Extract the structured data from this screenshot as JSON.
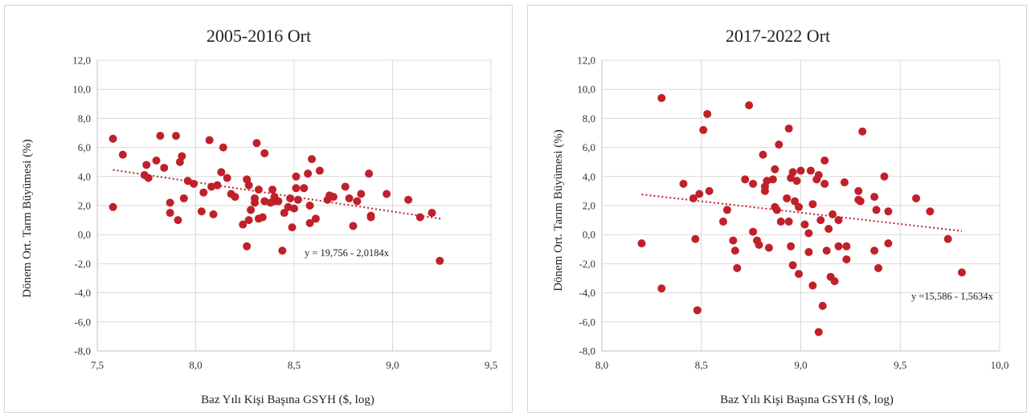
{
  "colors": {
    "points": "#c0202a",
    "trend": "#c0202a",
    "grid": "#d9d9d9"
  },
  "chart_data": [
    {
      "type": "scatter",
      "title": "2005-2016 Ort",
      "xlabel": "Baz Yılı Kişi Başına GSYH ($, log)",
      "ylabel": "Dönem Ort. Tarm Büyümesi (%)",
      "xlim": [
        7.5,
        9.5
      ],
      "ylim": [
        -8,
        12
      ],
      "xticks": [
        "7,5",
        "8,0",
        "8,5",
        "9,0",
        "9,5"
      ],
      "yticks": [
        "12,0",
        "10,0",
        "8,0",
        "6,0",
        "4,0",
        "2,0",
        "0,0",
        "-2,0",
        "-4,0",
        "-6,0",
        "-8,0"
      ],
      "grid": true,
      "trendline": {
        "intercept": 19.756,
        "slope": -2.0184,
        "x_range": [
          7.58,
          9.25
        ]
      },
      "equation": "y = 19,756 - 2,0184x",
      "points": [
        [
          7.58,
          6.6
        ],
        [
          7.58,
          1.9
        ],
        [
          7.63,
          5.5
        ],
        [
          7.74,
          4.1
        ],
        [
          7.75,
          4.8
        ],
        [
          7.76,
          3.9
        ],
        [
          7.8,
          5.1
        ],
        [
          7.82,
          6.8
        ],
        [
          7.84,
          4.6
        ],
        [
          7.87,
          2.2
        ],
        [
          7.87,
          1.5
        ],
        [
          7.9,
          6.8
        ],
        [
          7.91,
          1.0
        ],
        [
          7.92,
          5.0
        ],
        [
          7.93,
          5.4
        ],
        [
          7.94,
          2.5
        ],
        [
          7.96,
          3.7
        ],
        [
          7.99,
          3.5
        ],
        [
          8.03,
          1.6
        ],
        [
          8.04,
          2.9
        ],
        [
          8.07,
          6.5
        ],
        [
          8.08,
          3.3
        ],
        [
          8.09,
          1.4
        ],
        [
          8.11,
          3.4
        ],
        [
          8.13,
          4.3
        ],
        [
          8.14,
          6.0
        ],
        [
          8.16,
          3.9
        ],
        [
          8.18,
          2.8
        ],
        [
          8.2,
          2.6
        ],
        [
          8.24,
          0.7
        ],
        [
          8.26,
          -0.8
        ],
        [
          8.26,
          3.8
        ],
        [
          8.27,
          3.4
        ],
        [
          8.27,
          1.0
        ],
        [
          8.28,
          1.7
        ],
        [
          8.3,
          2.5
        ],
        [
          8.3,
          2.2
        ],
        [
          8.31,
          6.3
        ],
        [
          8.32,
          3.1
        ],
        [
          8.32,
          1.1
        ],
        [
          8.34,
          1.2
        ],
        [
          8.35,
          5.6
        ],
        [
          8.35,
          2.3
        ],
        [
          8.38,
          2.2
        ],
        [
          8.39,
          3.1
        ],
        [
          8.4,
          2.3
        ],
        [
          8.4,
          2.6
        ],
        [
          8.42,
          2.3
        ],
        [
          8.44,
          -1.1
        ],
        [
          8.45,
          1.5
        ],
        [
          8.47,
          1.9
        ],
        [
          8.48,
          2.5
        ],
        [
          8.49,
          0.5
        ],
        [
          8.5,
          1.8
        ],
        [
          8.51,
          4.0
        ],
        [
          8.51,
          3.2
        ],
        [
          8.52,
          2.4
        ],
        [
          8.55,
          3.2
        ],
        [
          8.57,
          4.2
        ],
        [
          8.58,
          0.8
        ],
        [
          8.58,
          2.0
        ],
        [
          8.59,
          5.2
        ],
        [
          8.61,
          1.1
        ],
        [
          8.63,
          4.4
        ],
        [
          8.67,
          2.4
        ],
        [
          8.68,
          2.7
        ],
        [
          8.7,
          2.6
        ],
        [
          8.76,
          3.3
        ],
        [
          8.78,
          2.5
        ],
        [
          8.8,
          0.6
        ],
        [
          8.82,
          2.3
        ],
        [
          8.84,
          2.8
        ],
        [
          8.88,
          4.2
        ],
        [
          8.89,
          1.3
        ],
        [
          8.89,
          1.2
        ],
        [
          8.97,
          2.8
        ],
        [
          9.08,
          2.4
        ],
        [
          9.14,
          1.2
        ],
        [
          9.2,
          1.5
        ],
        [
          9.24,
          -1.8
        ]
      ]
    },
    {
      "type": "scatter",
      "title": "2017-2022 Ort",
      "xlabel": "Baz Yılı Kişi Başına GSYH ($, log)",
      "ylabel": "Dönem Ort. Tarım Büyümesi (%)",
      "xlim": [
        8.0,
        10.0
      ],
      "ylim": [
        -8,
        12
      ],
      "xticks": [
        "8,0",
        "8,5",
        "9,0",
        "9,5",
        "10,0"
      ],
      "yticks": [
        "12,0",
        "10,0",
        "8,0",
        "6,0",
        "4,0",
        "2,0",
        "0,0",
        "-2,0",
        "-4,0",
        "-6,0",
        "-8,0"
      ],
      "grid": true,
      "trendline": {
        "intercept": 15.586,
        "slope": -1.5634,
        "x_range": [
          8.2,
          9.81
        ]
      },
      "equation": "y =15,586 - 1,5634x",
      "points": [
        [
          8.2,
          -0.6
        ],
        [
          8.3,
          9.4
        ],
        [
          8.3,
          -3.7
        ],
        [
          8.41,
          3.5
        ],
        [
          8.46,
          2.5
        ],
        [
          8.47,
          -0.3
        ],
        [
          8.48,
          -5.2
        ],
        [
          8.49,
          2.8
        ],
        [
          8.51,
          7.2
        ],
        [
          8.53,
          8.3
        ],
        [
          8.54,
          3.0
        ],
        [
          8.61,
          0.9
        ],
        [
          8.63,
          1.7
        ],
        [
          8.66,
          -0.4
        ],
        [
          8.67,
          -1.1
        ],
        [
          8.68,
          -2.3
        ],
        [
          8.72,
          3.8
        ],
        [
          8.74,
          8.9
        ],
        [
          8.76,
          0.2
        ],
        [
          8.76,
          3.5
        ],
        [
          8.78,
          -0.4
        ],
        [
          8.79,
          -0.7
        ],
        [
          8.81,
          5.5
        ],
        [
          8.82,
          3.3
        ],
        [
          8.82,
          3.0
        ],
        [
          8.83,
          3.7
        ],
        [
          8.84,
          -0.9
        ],
        [
          8.86,
          3.8
        ],
        [
          8.87,
          1.9
        ],
        [
          8.87,
          4.5
        ],
        [
          8.88,
          1.7
        ],
        [
          8.89,
          6.2
        ],
        [
          8.9,
          0.9
        ],
        [
          8.93,
          2.5
        ],
        [
          8.94,
          7.3
        ],
        [
          8.94,
          0.9
        ],
        [
          8.95,
          3.9
        ],
        [
          8.95,
          -0.8
        ],
        [
          8.96,
          4.3
        ],
        [
          8.96,
          -2.1
        ],
        [
          8.97,
          2.3
        ],
        [
          8.98,
          3.7
        ],
        [
          8.99,
          1.9
        ],
        [
          9.0,
          4.4
        ],
        [
          8.99,
          -2.7
        ],
        [
          9.02,
          0.7
        ],
        [
          9.04,
          0.1
        ],
        [
          9.04,
          -1.2
        ],
        [
          9.05,
          4.4
        ],
        [
          9.06,
          2.1
        ],
        [
          9.06,
          -3.5
        ],
        [
          9.08,
          3.8
        ],
        [
          9.09,
          4.1
        ],
        [
          9.09,
          -6.7
        ],
        [
          9.1,
          1.0
        ],
        [
          9.11,
          -4.9
        ],
        [
          9.12,
          5.1
        ],
        [
          9.12,
          3.5
        ],
        [
          9.13,
          -1.1
        ],
        [
          9.14,
          0.4
        ],
        [
          9.15,
          -2.9
        ],
        [
          9.16,
          1.4
        ],
        [
          9.17,
          -3.2
        ],
        [
          9.19,
          -0.8
        ],
        [
          9.19,
          1.0
        ],
        [
          9.22,
          3.6
        ],
        [
          9.23,
          -0.8
        ],
        [
          9.23,
          -1.7
        ],
        [
          9.29,
          3.0
        ],
        [
          9.29,
          2.4
        ],
        [
          9.3,
          2.3
        ],
        [
          9.31,
          7.1
        ],
        [
          9.37,
          2.6
        ],
        [
          9.37,
          -1.1
        ],
        [
          9.38,
          1.7
        ],
        [
          9.39,
          -2.3
        ],
        [
          9.42,
          4.0
        ],
        [
          9.44,
          1.6
        ],
        [
          9.44,
          -0.6
        ],
        [
          9.58,
          2.5
        ],
        [
          9.65,
          1.6
        ],
        [
          9.74,
          -0.3
        ],
        [
          9.81,
          -2.6
        ]
      ]
    }
  ]
}
